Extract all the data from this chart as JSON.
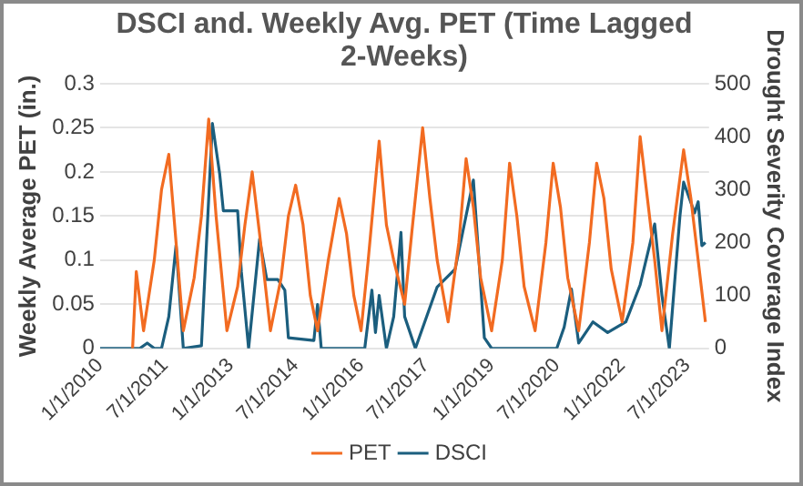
{
  "chart_data": {
    "type": "line",
    "title": "DSCI and. Weekly Avg. PET (Time Lagged 2-Weeks)",
    "ylabel": "Weekly Average PET (in.)",
    "y2label": "Drought Severity Coverage Index",
    "xlim": [
      "2010-01-01",
      "2023-12-31"
    ],
    "xticks": [
      {
        "value": "2010-01-01",
        "label": "1/1/2010"
      },
      {
        "value": "2011-07-01",
        "label": "7/1/2011"
      },
      {
        "value": "2013-01-01",
        "label": "1/1/2013"
      },
      {
        "value": "2014-07-01",
        "label": "7/1/2014"
      },
      {
        "value": "2016-01-01",
        "label": "1/1/2016"
      },
      {
        "value": "2017-07-01",
        "label": "7/1/2017"
      },
      {
        "value": "2019-01-01",
        "label": "1/1/2019"
      },
      {
        "value": "2020-07-01",
        "label": "7/1/2020"
      },
      {
        "value": "2022-01-01",
        "label": "1/1/2022"
      },
      {
        "value": "2023-07-01",
        "label": "7/1/2023"
      }
    ],
    "ylim": [
      0,
      0.3
    ],
    "yticks": [
      0,
      0.05,
      0.1,
      0.15,
      0.2,
      0.25,
      0.3
    ],
    "y2lim": [
      0,
      500
    ],
    "y2ticks": [
      0,
      100,
      200,
      300,
      400,
      500
    ],
    "grid": "y",
    "legend": "bottom",
    "marker": "none",
    "line_style": "solid",
    "series": [
      {
        "name": "PET",
        "color": "#f26b21",
        "x": [
          "2010-10",
          "2010-11",
          "2011-01",
          "2011-04",
          "2011-06",
          "2011-08",
          "2011-10",
          "2011-12",
          "2012-03",
          "2012-05",
          "2012-07",
          "2012-09",
          "2012-12",
          "2013-03",
          "2013-05",
          "2013-07",
          "2013-09",
          "2013-12",
          "2014-03",
          "2014-05",
          "2014-07",
          "2014-09",
          "2014-11",
          "2015-01",
          "2015-04",
          "2015-07",
          "2015-09",
          "2015-11",
          "2016-01",
          "2016-03",
          "2016-06",
          "2016-08",
          "2016-10",
          "2017-01",
          "2017-03",
          "2017-06",
          "2017-08",
          "2017-10",
          "2018-01",
          "2018-04",
          "2018-06",
          "2018-08",
          "2018-10",
          "2019-01",
          "2019-04",
          "2019-06",
          "2019-08",
          "2019-10",
          "2020-01",
          "2020-04",
          "2020-06",
          "2020-08",
          "2020-10",
          "2021-01",
          "2021-04",
          "2021-06",
          "2021-08",
          "2021-10",
          "2022-01",
          "2022-04",
          "2022-06",
          "2022-08",
          "2022-10",
          "2022-12",
          "2023-03",
          "2023-06",
          "2023-08",
          "2023-10",
          "2023-12"
        ],
        "values": [
          0,
          0.087,
          0.02,
          0.1,
          0.18,
          0.22,
          0.12,
          0.02,
          0.08,
          0.15,
          0.26,
          0.15,
          0.02,
          0.07,
          0.14,
          0.2,
          0.13,
          0.02,
          0.08,
          0.15,
          0.185,
          0.14,
          0.06,
          0.02,
          0.1,
          0.17,
          0.13,
          0.06,
          0.02,
          0.1,
          0.235,
          0.14,
          0.1,
          0.05,
          0.13,
          0.25,
          0.17,
          0.1,
          0.03,
          0.12,
          0.215,
          0.16,
          0.08,
          0.02,
          0.1,
          0.21,
          0.15,
          0.07,
          0.02,
          0.12,
          0.21,
          0.16,
          0.08,
          0.02,
          0.12,
          0.21,
          0.17,
          0.09,
          0.03,
          0.12,
          0.24,
          0.17,
          0.1,
          0.02,
          0.13,
          0.225,
          0.17,
          0.1,
          0.03
        ]
      },
      {
        "name": "DSCI",
        "color": "#1b5e7e",
        "axis": "y2",
        "x": [
          "2010-01",
          "2010-12",
          "2011-02",
          "2011-04",
          "2011-06",
          "2011-08",
          "2011-10",
          "2011-12",
          "2012-05",
          "2012-08",
          "2012-10",
          "2012-11",
          "2013-03",
          "2013-04",
          "2013-06",
          "2013-09",
          "2013-11",
          "2014-02",
          "2014-04",
          "2014-05",
          "2014-12",
          "2015-01",
          "2015-02",
          "2016-02",
          "2016-04",
          "2016-05",
          "2016-06",
          "2016-08",
          "2016-10",
          "2016-12",
          "2017-01",
          "2017-04",
          "2017-10",
          "2018-03",
          "2018-08",
          "2018-11",
          "2019-01",
          "2020-07",
          "2020-09",
          "2020-11",
          "2021-01",
          "2021-05",
          "2021-09",
          "2022-02",
          "2022-06",
          "2022-10",
          "2022-12",
          "2023-02",
          "2023-05",
          "2023-06",
          "2023-09",
          "2023-10",
          "2023-11",
          "2023-12"
        ],
        "values": [
          0,
          0,
          10,
          0,
          0,
          60,
          195,
          0,
          5,
          425,
          330,
          260,
          260,
          145,
          0,
          206,
          130,
          130,
          110,
          20,
          15,
          83,
          0,
          0,
          110,
          30,
          100,
          0,
          60,
          219,
          60,
          0,
          116,
          150,
          318,
          20,
          0,
          0,
          40,
          112,
          10,
          50,
          30,
          50,
          120,
          235,
          100,
          0,
          250,
          314,
          256,
          277,
          194,
          200
        ]
      }
    ]
  }
}
